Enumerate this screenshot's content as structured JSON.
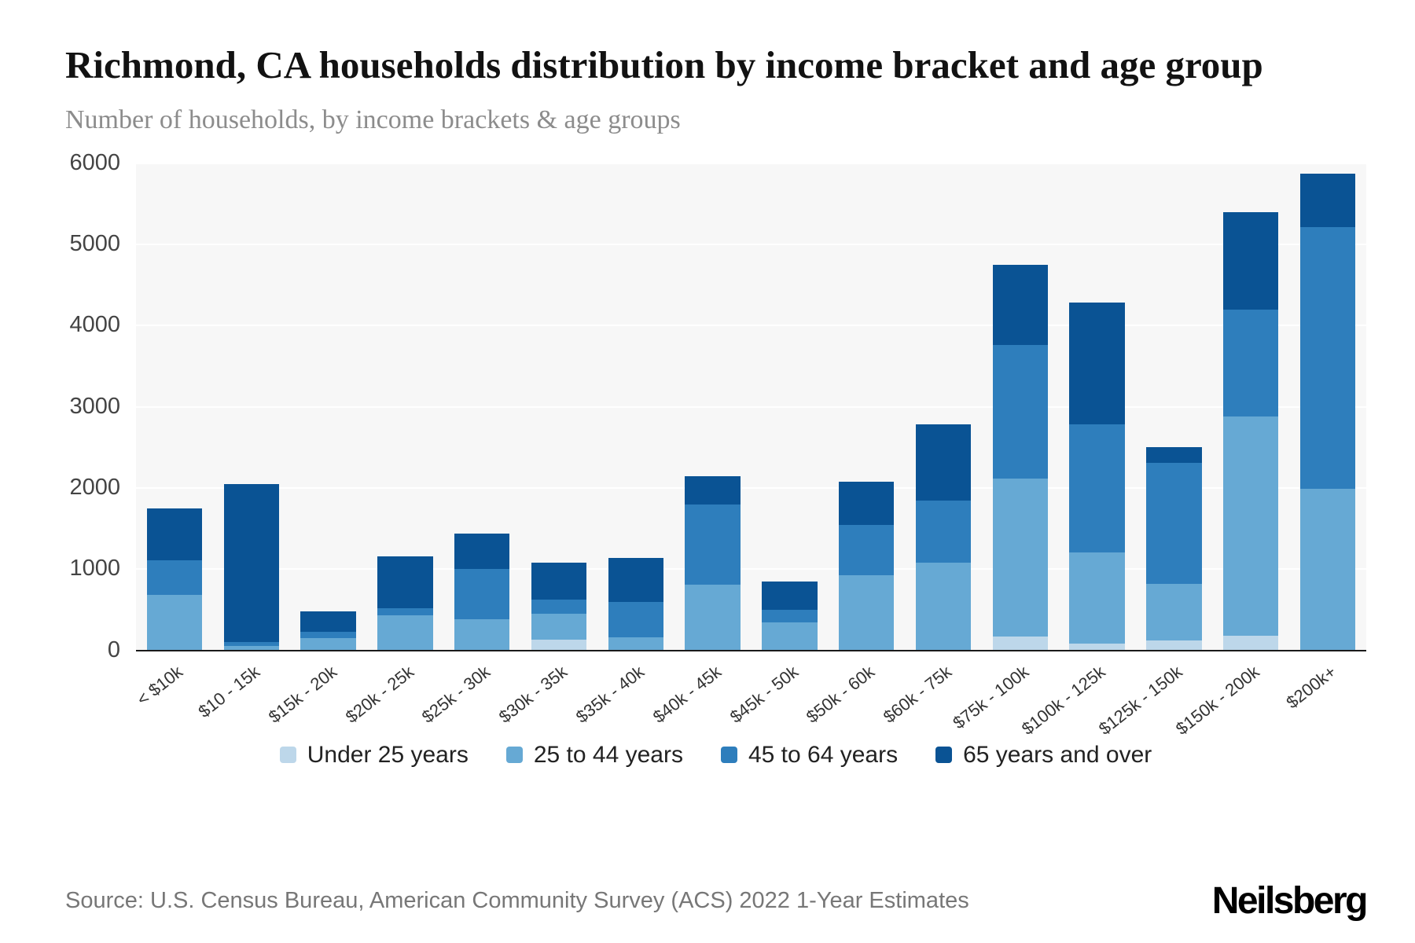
{
  "header": {
    "title": "Richmond, CA households distribution by income bracket and age group",
    "subtitle": "Number of households, by income brackets & age groups"
  },
  "chart_data": {
    "type": "bar",
    "stacked": true,
    "title": "Richmond, CA households distribution by income bracket and age group",
    "xlabel": "",
    "ylabel": "Number of households",
    "ylim": [
      0,
      6000
    ],
    "yticks": [
      0,
      1000,
      2000,
      3000,
      4000,
      5000,
      6000
    ],
    "grid": true,
    "legend_position": "bottom",
    "categories": [
      "< $10k",
      "$10 - 15k",
      "$15k - 20k",
      "$20k - 25k",
      "$25k - 30k",
      "$30k - 35k",
      "$35k - 40k",
      "$40k - 45k",
      "$45k - 50k",
      "$50k - 60k",
      "$60k - 75k",
      "$75k - 100k",
      "$100k - 125k",
      "$125k - 150k",
      "$150k - 200k",
      "$200k+"
    ],
    "series": [
      {
        "name": "Under 25 years",
        "color": "#bdd7ea",
        "values": [
          0,
          0,
          0,
          0,
          0,
          130,
          0,
          0,
          0,
          0,
          0,
          170,
          80,
          120,
          180,
          0
        ]
      },
      {
        "name": "25 to 44 years",
        "color": "#66a9d4",
        "values": [
          680,
          60,
          150,
          430,
          380,
          320,
          160,
          810,
          350,
          930,
          1080,
          1950,
          1130,
          700,
          2700,
          1990
        ]
      },
      {
        "name": "45 to 64 years",
        "color": "#2e7ebc",
        "values": [
          430,
          40,
          80,
          90,
          620,
          180,
          440,
          990,
          150,
          620,
          770,
          1640,
          1570,
          1490,
          1320,
          3220
        ]
      },
      {
        "name": "65 years and over",
        "color": "#0a5394",
        "values": [
          640,
          1950,
          250,
          640,
          440,
          450,
          540,
          350,
          350,
          530,
          930,
          990,
          1500,
          190,
          1200,
          660
        ]
      }
    ]
  },
  "footer": {
    "source": "Source: U.S. Census Bureau, American Community Survey (ACS) 2022 1-Year Estimates",
    "brand": "Neilsberg"
  }
}
